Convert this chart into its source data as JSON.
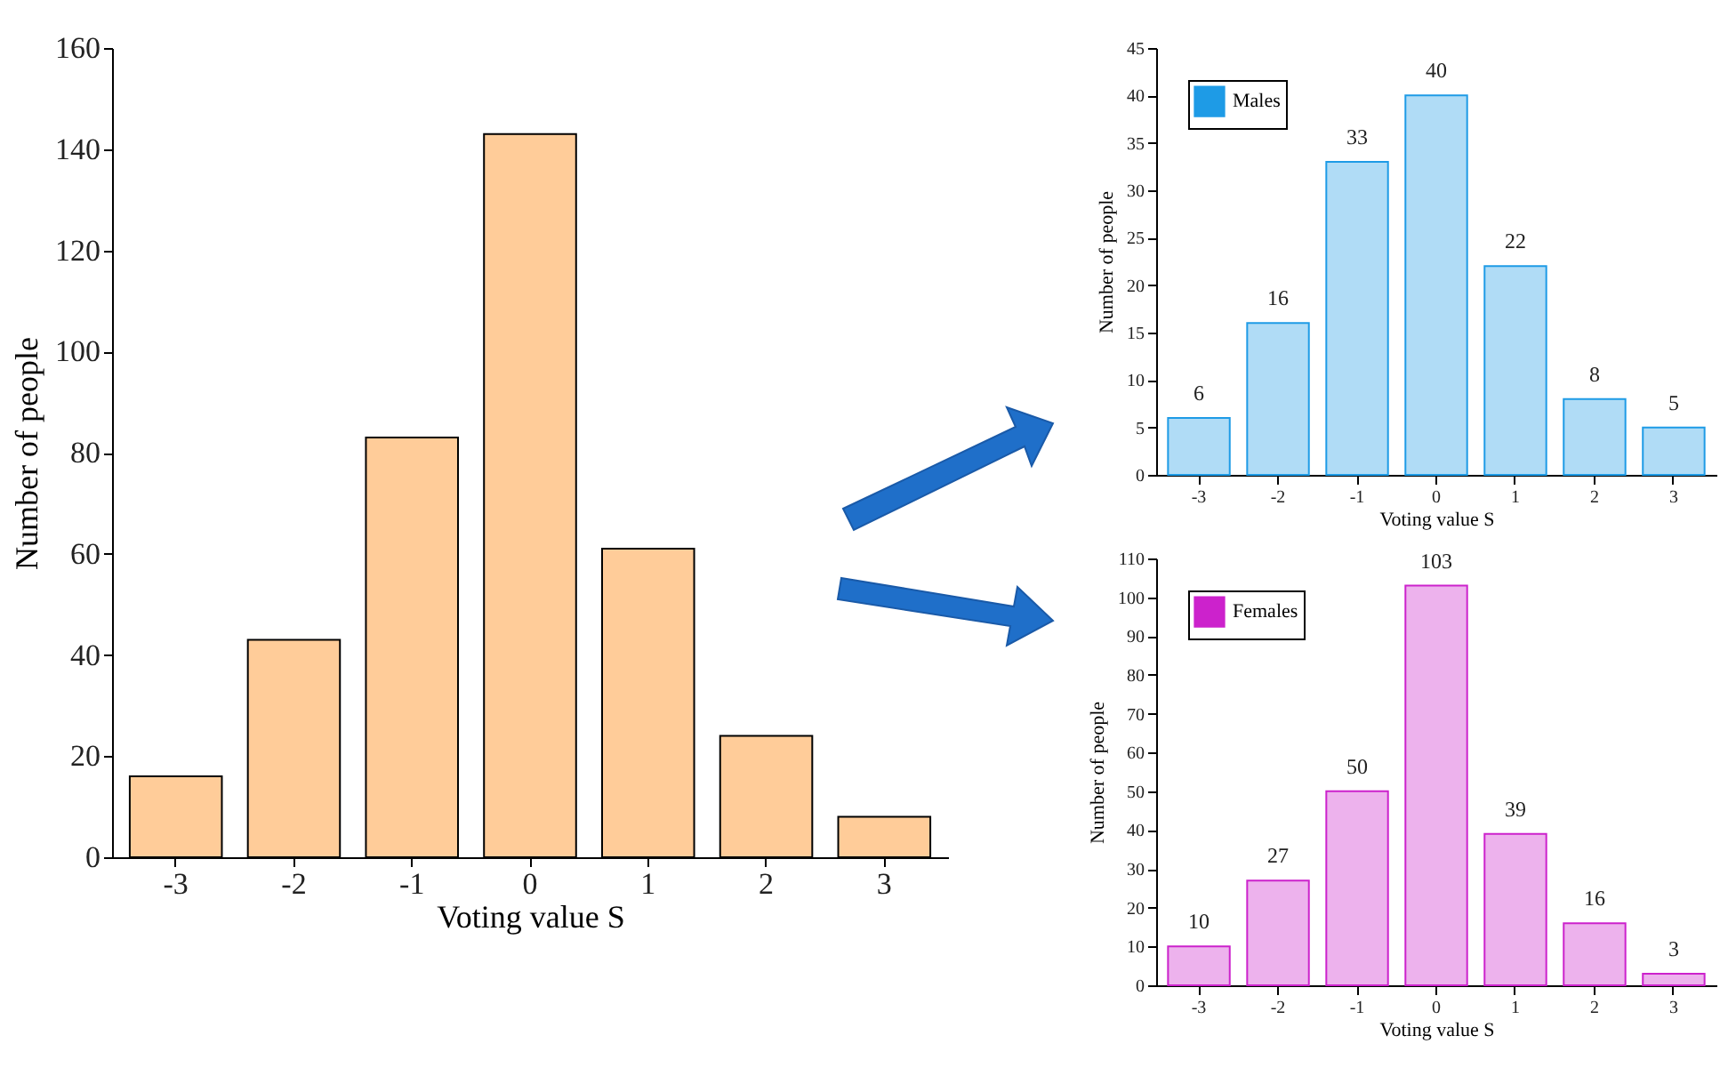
{
  "chart_data": [
    {
      "type": "bar",
      "categories": [
        "-3",
        "-2",
        "-1",
        "0",
        "1",
        "2",
        "3"
      ],
      "xlabel": "Voting value S",
      "ylabel": "Number of people",
      "ylim": [
        0,
        160
      ],
      "yticks": [
        0,
        20,
        40,
        60,
        80,
        100,
        120,
        140,
        160
      ],
      "series": [
        {
          "color": "#ffcc99",
          "values": [
            16,
            43,
            83,
            143,
            61,
            24,
            8
          ]
        }
      ]
    },
    {
      "type": "bar",
      "categories": [
        "-3",
        "-2",
        "-1",
        "0",
        "1",
        "2",
        "3"
      ],
      "xlabel": "Voting value S",
      "ylabel": "Number of people",
      "ylim": [
        0,
        45
      ],
      "yticks": [
        0,
        5,
        10,
        15,
        20,
        25,
        30,
        35,
        40,
        45
      ],
      "data_labels": true,
      "legend": "top left",
      "series": [
        {
          "name": "Males",
          "color": "#1e9be6",
          "values": [
            6,
            16,
            33,
            40,
            22,
            8,
            5
          ]
        }
      ]
    },
    {
      "type": "bar",
      "categories": [
        "-3",
        "-2",
        "-1",
        "0",
        "1",
        "2",
        "3"
      ],
      "xlabel": "Voting value S",
      "ylabel": "Number of people",
      "ylim": [
        0,
        110
      ],
      "yticks": [
        0,
        10,
        20,
        30,
        40,
        50,
        60,
        70,
        80,
        90,
        100,
        110
      ],
      "data_labels": true,
      "legend": "top left",
      "series": [
        {
          "name": "Females",
          "color": "#cc22cc",
          "values": [
            10,
            27,
            50,
            103,
            39,
            16,
            3
          ]
        }
      ]
    }
  ]
}
